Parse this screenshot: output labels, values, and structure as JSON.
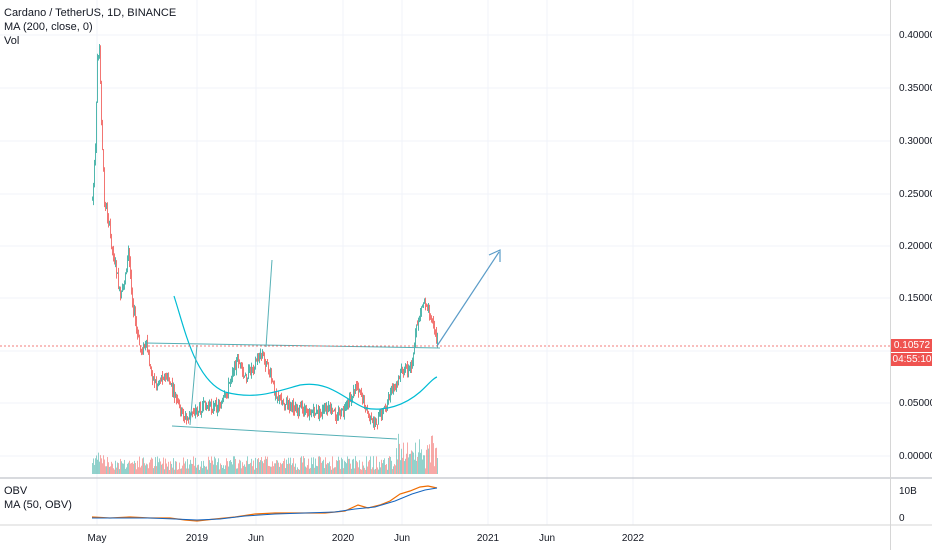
{
  "legend": {
    "symbol": "Cardano / TetherUS, 1D, BINANCE",
    "ma": "MA (200, close, 0)",
    "vol": "Vol"
  },
  "obv_legend": {
    "obv": "OBV",
    "ma": "MA (50, OBV)"
  },
  "price_axis": {
    "ticks": [
      "0.40000",
      "0.35000",
      "0.30000",
      "0.25000",
      "0.20000",
      "0.15000",
      "0.10000",
      "0.05000",
      "0.00000"
    ],
    "current_price": "0.10572",
    "countdown": "04:55:10",
    "badge_color": "#ef5350"
  },
  "obv_axis": {
    "ticks": [
      "10B",
      "0"
    ]
  },
  "time_axis": {
    "ticks": [
      "May",
      "2019",
      "Jun",
      "2020",
      "Jun",
      "2021",
      "Jun",
      "2022"
    ]
  },
  "colors": {
    "up": "#26a69a",
    "down": "#ef5350",
    "ma": "#00bcd4",
    "trendline": "#56b0b6",
    "obv": "#ef6c00",
    "obv_ma": "#1565c0",
    "grid": "#f0f3fa"
  }
}
